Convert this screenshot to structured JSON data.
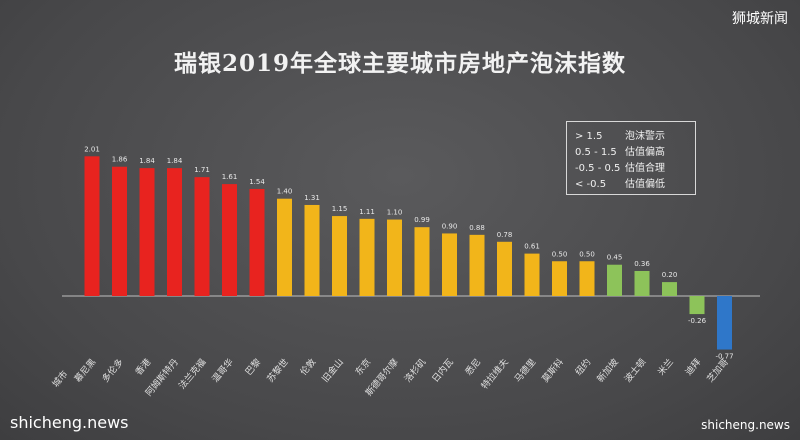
{
  "brand": "狮城新闻",
  "watermark_left": "shicheng.news",
  "watermark_right": "shicheng.news",
  "legend": [
    {
      "range": "> 1.5",
      "label": "泡沫警示"
    },
    {
      "range": "0.5 - 1.5",
      "label": "估值偏高"
    },
    {
      "range": "-0.5 - 0.5",
      "label": "估值合理"
    },
    {
      "range": "< -0.5",
      "label": "估值偏低"
    }
  ],
  "colors": {
    "bubble": "#e8231f",
    "overvalued": "#f2b51a",
    "fair": "#8dc35a",
    "undervalued": "#2f77c9",
    "axis": "#bfbfbf"
  },
  "chart_data": {
    "type": "bar",
    "title": "瑞银2019年全球主要城市房地产泡沫指数",
    "xlabel": "城市",
    "ylabel": "",
    "ylim": [
      -0.85,
      2.2
    ],
    "grid": false,
    "legend_position": "top-right",
    "categories": [
      "慕尼黑",
      "多伦多",
      "香港",
      "阿姆斯特丹",
      "法兰克福",
      "温哥华",
      "巴黎",
      "苏黎世",
      "伦敦",
      "旧金山",
      "东京",
      "斯德哥尔摩",
      "洛杉矶",
      "日内瓦",
      "悉尼",
      "特拉维夫",
      "马德里",
      "莫斯科",
      "纽约",
      "新加坡",
      "波士顿",
      "米兰",
      "迪拜",
      "芝加哥"
    ],
    "values": [
      2.01,
      1.86,
      1.84,
      1.84,
      1.71,
      1.61,
      1.54,
      1.4,
      1.31,
      1.15,
      1.11,
      1.1,
      0.99,
      0.9,
      0.88,
      0.78,
      0.61,
      0.5,
      0.5,
      0.45,
      0.36,
      0.2,
      -0.26,
      -0.77
    ],
    "value_labels": [
      "2.01",
      "1.86",
      "1.84",
      "1.84",
      "1.71",
      "1.61",
      "1.54",
      "1.40",
      "1.31",
      "1.15",
      "1.11",
      "1.10",
      "0.99",
      "0.90",
      "0.88",
      "0.78",
      "0.61",
      "0.50",
      "0.50",
      "0.45",
      "0.36",
      "0.20",
      "-0.26",
      "-0.77"
    ],
    "categories_class": [
      "bubble",
      "bubble",
      "bubble",
      "bubble",
      "bubble",
      "bubble",
      "bubble",
      "overvalued",
      "overvalued",
      "overvalued",
      "overvalued",
      "overvalued",
      "overvalued",
      "overvalued",
      "overvalued",
      "overvalued",
      "overvalued",
      "overvalued",
      "overvalued",
      "fair",
      "fair",
      "fair",
      "fair",
      "undervalued"
    ]
  }
}
